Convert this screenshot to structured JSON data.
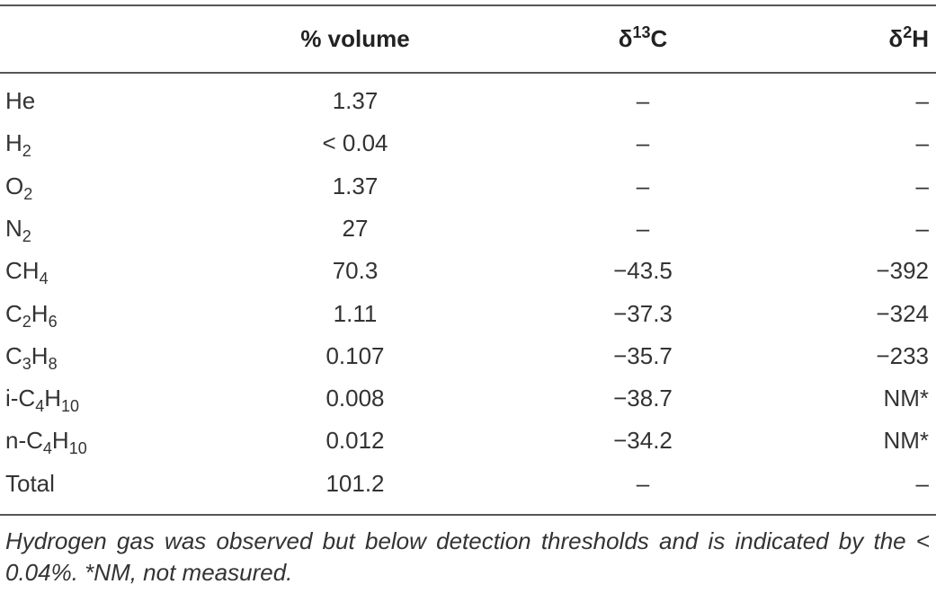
{
  "table": {
    "header": [
      [],
      [
        "% volume"
      ],
      [
        "δ",
        "13",
        "C"
      ],
      [
        "δ",
        "2",
        "H"
      ]
    ],
    "rows": [
      {
        "label": [
          "He"
        ],
        "cells": [
          "1.37",
          "–",
          "–"
        ]
      },
      {
        "label": [
          "H",
          "2"
        ],
        "cells": [
          "< 0.04",
          "–",
          "–"
        ]
      },
      {
        "label": [
          "O",
          "2"
        ],
        "cells": [
          "1.37",
          "–",
          "–"
        ]
      },
      {
        "label": [
          "N",
          "2"
        ],
        "cells": [
          "27",
          "–",
          "–"
        ]
      },
      {
        "label": [
          "CH",
          "4"
        ],
        "cells": [
          "70.3",
          "−43.5",
          "−392"
        ]
      },
      {
        "label": [
          "C",
          "2",
          "H",
          "6"
        ],
        "cells": [
          "1.11",
          "−37.3",
          "−324"
        ]
      },
      {
        "label": [
          "C",
          "3",
          "H",
          "8"
        ],
        "cells": [
          "0.107",
          "−35.7",
          "−233"
        ]
      },
      {
        "label": [
          "i-C",
          "4",
          "H",
          "10"
        ],
        "cells": [
          "0.008",
          "−38.7",
          "NM*"
        ]
      },
      {
        "label": [
          "n-C",
          "4",
          "H",
          "10"
        ],
        "cells": [
          "0.012",
          "−34.2",
          "NM*"
        ]
      },
      {
        "label": [
          "Total"
        ],
        "cells": [
          "101.2",
          "–",
          "–"
        ]
      }
    ],
    "footnote": "Hydrogen gas was observed but below detection thresholds and is indicated by the < 0.04%. *NM, not measured."
  }
}
